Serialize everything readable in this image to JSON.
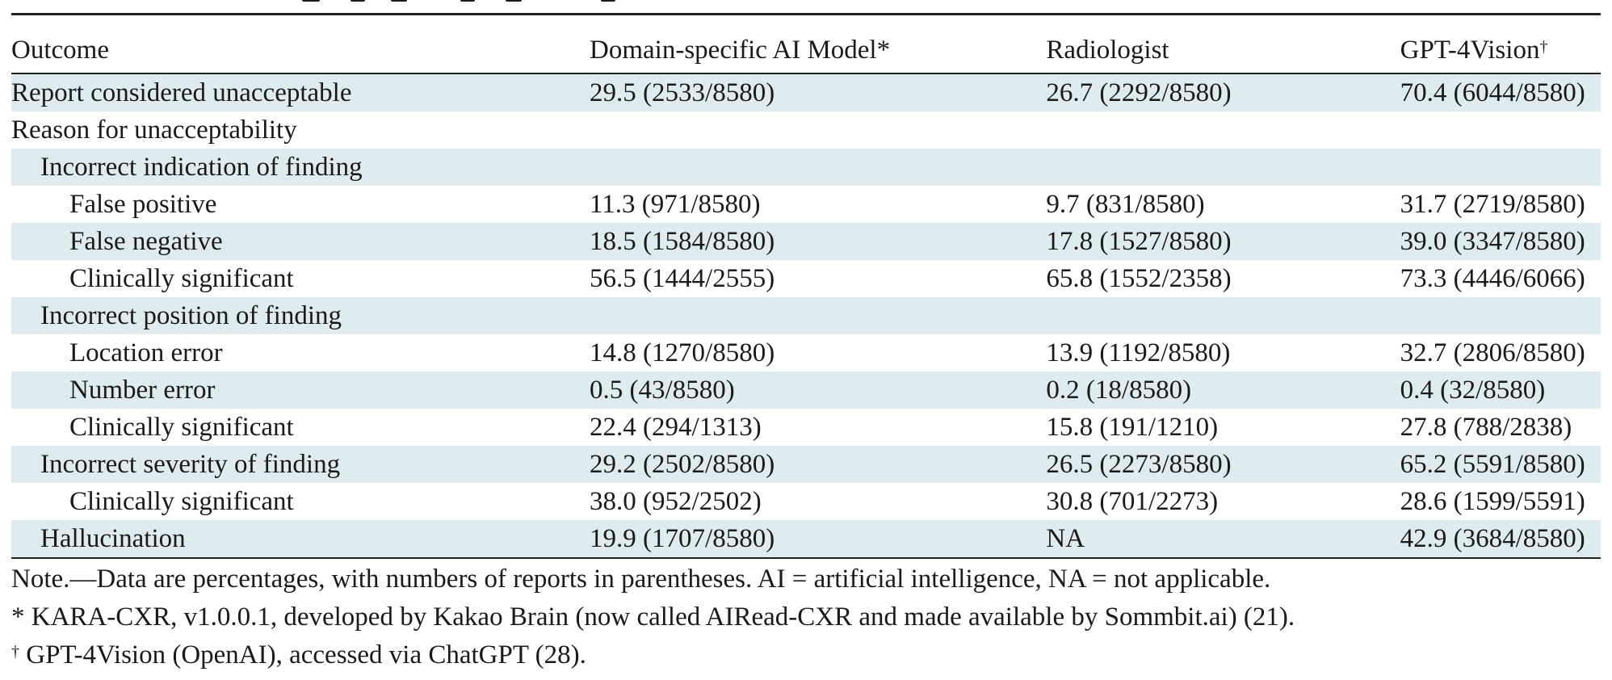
{
  "table": {
    "headers": {
      "outcome": "Outcome",
      "ai_model": "Domain-specific AI Model",
      "ai_model_mark": "*",
      "radiologist": "Radiologist",
      "gpt": "GPT-4Vision",
      "gpt_mark": "†"
    },
    "rows": [
      {
        "label": "Report considered unacceptable",
        "ai": "29.5 (2533/8580)",
        "rad": "26.7 (2292/8580)",
        "gpt": "70.4 (6044/8580)"
      },
      {
        "label": "Reason for unacceptability",
        "ai": "",
        "rad": "",
        "gpt": ""
      },
      {
        "label": "Incorrect indication of finding",
        "ai": "",
        "rad": "",
        "gpt": ""
      },
      {
        "label": "False positive",
        "ai": "11.3 (971/8580)",
        "rad": "9.7 (831/8580)",
        "gpt": "31.7 (2719/8580)"
      },
      {
        "label": "False negative",
        "ai": "18.5 (1584/8580)",
        "rad": "17.8 (1527/8580)",
        "gpt": "39.0 (3347/8580)"
      },
      {
        "label": "Clinically significant",
        "ai": "56.5 (1444/2555)",
        "rad": "65.8 (1552/2358)",
        "gpt": "73.3 (4446/6066)"
      },
      {
        "label": "Incorrect position of finding",
        "ai": "",
        "rad": "",
        "gpt": ""
      },
      {
        "label": "Location error",
        "ai": "14.8 (1270/8580)",
        "rad": "13.9 (1192/8580)",
        "gpt": "32.7 (2806/8580)"
      },
      {
        "label": "Number error",
        "ai": "0.5 (43/8580)",
        "rad": "0.2 (18/8580)",
        "gpt": "0.4 (32/8580)"
      },
      {
        "label": "Clinically significant",
        "ai": "22.4 (294/1313)",
        "rad": "15.8 (191/1210)",
        "gpt": "27.8 (788/2838)"
      },
      {
        "label": "Incorrect severity of finding",
        "ai": "29.2 (2502/8580)",
        "rad": "26.5 (2273/8580)",
        "gpt": "65.2 (5591/8580)"
      },
      {
        "label": "Clinically significant",
        "ai": "38.0 (952/2502)",
        "rad": "30.8 (701/2273)",
        "gpt": "28.6 (1599/5591)"
      },
      {
        "label": "Hallucination",
        "ai": "19.9 (1707/8580)",
        "rad": "NA",
        "gpt": "42.9 (3684/8580)"
      }
    ]
  },
  "notes": {
    "note": "Note.—Data are percentages, with numbers of reports in parentheses. AI = artificial intelligence, NA = not applicable.",
    "footnote_star": "* KARA-CXR, v1.0.0.1, developed by Kakao Brain (now called AIRead-CXR and made available by Sommbit.ai) (21).",
    "footnote_dagger_mark": "†",
    "footnote_dagger": " GPT-4Vision (OpenAI), accessed via ChatGPT (28)."
  }
}
